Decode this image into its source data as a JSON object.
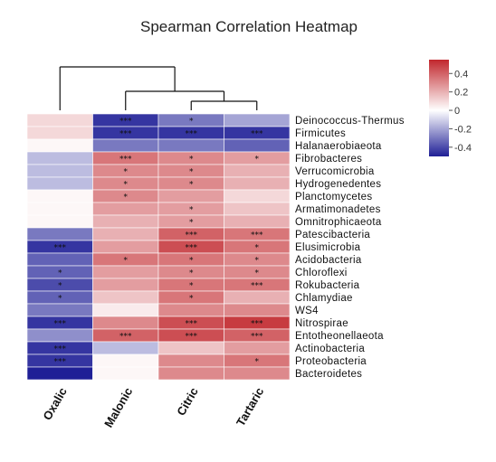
{
  "chart_data": {
    "type": "heatmap",
    "title": "Spearman Correlation Heatmap",
    "columns": [
      "Oxalic",
      "Malonic",
      "Citric",
      "Tartaric"
    ],
    "rows": [
      "Deinococcus-Thermus",
      "Firmicutes",
      "Halanaerobiaeota",
      "Fibrobacteres",
      "Verrucomicrobia",
      "Hydrogenedentes",
      "Planctomycetes",
      "Armatimonadetes",
      "Omnitrophicaeota",
      "Patescibacteria",
      "Elusimicrobia",
      "Acidobacteria",
      "Chloroflexi",
      "Rokubacteria",
      "Chlamydiae",
      "WS4",
      "Nitrospirae",
      "Entotheonellaeota",
      "Actinobacteria",
      "Proteobacteria",
      "Bacteroidetes"
    ],
    "values": [
      [
        0.1,
        -0.45,
        -0.3,
        -0.2
      ],
      [
        0.1,
        -0.45,
        -0.45,
        -0.45
      ],
      [
        0.02,
        -0.3,
        -0.3,
        -0.35
      ],
      [
        -0.15,
        0.35,
        0.3,
        0.25
      ],
      [
        -0.15,
        0.3,
        0.3,
        0.2
      ],
      [
        -0.15,
        0.3,
        0.3,
        0.2
      ],
      [
        0.02,
        0.3,
        0.25,
        0.1
      ],
      [
        0.02,
        0.25,
        0.25,
        0.15
      ],
      [
        0.02,
        0.2,
        0.25,
        0.2
      ],
      [
        -0.3,
        0.2,
        0.4,
        0.35
      ],
      [
        -0.45,
        0.25,
        0.45,
        0.35
      ],
      [
        -0.35,
        0.35,
        0.35,
        0.3
      ],
      [
        -0.35,
        0.25,
        0.3,
        0.3
      ],
      [
        -0.4,
        0.25,
        0.35,
        0.35
      ],
      [
        -0.35,
        0.15,
        0.35,
        0.2
      ],
      [
        -0.3,
        0.05,
        0.3,
        0.3
      ],
      [
        -0.45,
        0.3,
        0.45,
        0.5
      ],
      [
        -0.25,
        0.4,
        0.45,
        0.4
      ],
      [
        -0.45,
        -0.15,
        0.15,
        0.25
      ],
      [
        -0.45,
        0.02,
        0.3,
        0.35
      ],
      [
        -0.5,
        0.02,
        0.3,
        0.3
      ]
    ],
    "significance": [
      [
        "",
        "***",
        "*",
        ""
      ],
      [
        "",
        "***",
        "***",
        "***"
      ],
      [
        "",
        "",
        "",
        ""
      ],
      [
        "",
        "***",
        "*",
        "*"
      ],
      [
        "",
        "*",
        "*",
        ""
      ],
      [
        "",
        "*",
        "*",
        ""
      ],
      [
        "",
        "*",
        "",
        ""
      ],
      [
        "",
        "",
        "*",
        ""
      ],
      [
        "",
        "",
        "*",
        ""
      ],
      [
        "",
        "",
        "***",
        "***"
      ],
      [
        "***",
        "",
        "***",
        "*"
      ],
      [
        "",
        "*",
        "*",
        "*"
      ],
      [
        "*",
        "",
        "*",
        "*"
      ],
      [
        "*",
        "",
        "*",
        "***"
      ],
      [
        "*",
        "",
        "*",
        ""
      ],
      [
        "",
        "",
        "",
        ""
      ],
      [
        "***",
        "",
        "***",
        "***"
      ],
      [
        "",
        "***",
        "***",
        "***"
      ],
      [
        "***",
        "",
        "",
        ""
      ],
      [
        "***",
        "",
        "",
        "*"
      ],
      [
        "",
        "",
        "",
        ""
      ]
    ],
    "color_scale": {
      "min": -0.5,
      "max": 0.55,
      "low": "#1f1f96",
      "mid": "#ffffff",
      "high": "#c1272d"
    },
    "legend": {
      "ticks": [
        0.4,
        0.2,
        0,
        -0.2,
        -0.4
      ],
      "tick_labels": [
        "0.4",
        "0.2",
        "0",
        "-0.2",
        "-0.4"
      ],
      "position": "top-right"
    },
    "dendrogram": {
      "side": "top",
      "merges": [
        [
          "Citric",
          "Tartaric"
        ],
        [
          "Malonic",
          "Citric+Tartaric"
        ],
        [
          "Oxalic",
          "Malonic+Citric+Tartaric"
        ]
      ]
    }
  }
}
